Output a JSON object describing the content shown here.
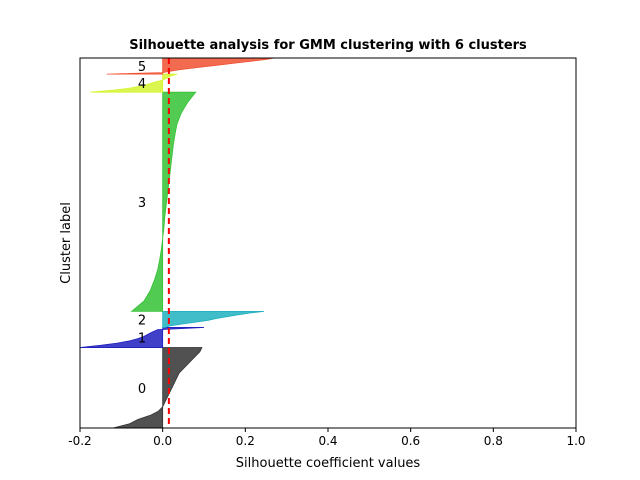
{
  "chart_data": {
    "type": "area",
    "title": "Silhouette analysis for GMM clustering with 6 clusters",
    "xlabel": "Silhouette coefficient values",
    "ylabel": "Cluster label",
    "xlim": [
      -0.2,
      1.0
    ],
    "ylim": [
      0,
      920
    ],
    "xticks": [
      -0.2,
      0.0,
      0.2,
      0.4,
      0.6,
      0.8,
      1.0
    ],
    "xtick_labels": [
      "-0.2",
      "0.0",
      "0.2",
      "0.4",
      "0.6",
      "0.8",
      "1.0"
    ],
    "yticks_shown": false,
    "grid": false,
    "average_silhouette": 0.015,
    "average_line_color": "#ff0000",
    "clusters": [
      {
        "label": "0",
        "color": "#333333",
        "y_range": [
          0,
          200
        ],
        "sorted_values": [
          -0.12,
          -0.08,
          -0.06,
          -0.03,
          -0.01,
          0.0,
          0.005,
          0.01,
          0.015,
          0.02,
          0.025,
          0.03,
          0.035,
          0.04,
          0.05,
          0.06,
          0.07,
          0.08,
          0.09,
          0.095
        ]
      },
      {
        "label": "1",
        "color": "#1f1fc0",
        "y_range": [
          200,
          250
        ],
        "sorted_values": [
          -0.2,
          -0.15,
          -0.11,
          -0.08,
          -0.06,
          -0.045,
          -0.035,
          -0.025,
          -0.012,
          0.1
        ]
      },
      {
        "label": "2",
        "color": "#20b0c0",
        "y_range": [
          250,
          290
        ],
        "sorted_values": [
          0.005,
          0.02,
          0.05,
          0.08,
          0.11,
          0.13,
          0.155,
          0.18,
          0.21,
          0.245
        ]
      },
      {
        "label": "3",
        "color": "#33c233",
        "y_range": [
          290,
          835
        ],
        "sorted_values": [
          -0.075,
          -0.045,
          -0.03,
          -0.02,
          -0.012,
          -0.007,
          -0.003,
          0.0,
          0.003,
          0.005,
          0.008,
          0.011,
          0.014,
          0.017,
          0.02,
          0.023,
          0.026,
          0.03,
          0.035,
          0.045,
          0.06,
          0.08
        ]
      },
      {
        "label": "4",
        "color": "#d4f530",
        "y_range": [
          835,
          880
        ],
        "sorted_values": [
          -0.175,
          -0.12,
          -0.08,
          -0.055,
          -0.035,
          -0.02,
          0.0,
          0.01,
          0.02,
          0.035
        ]
      },
      {
        "label": "5",
        "color": "#f05030",
        "y_range": [
          880,
          920
        ],
        "sorted_values": [
          -0.135,
          0.0,
          0.02,
          0.04,
          0.07,
          0.1,
          0.13,
          0.16,
          0.19,
          0.22,
          0.25,
          0.27
        ]
      }
    ]
  }
}
